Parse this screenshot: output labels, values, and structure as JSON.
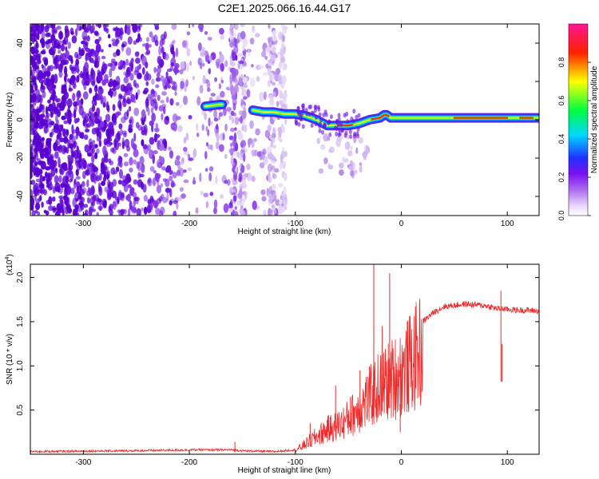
{
  "title": "C2E1.2025.066.16.44.G17",
  "chart_data": [
    {
      "type": "heatmap",
      "xlabel": "Height of straight line (km)",
      "ylabel": "Frequency (Hz)",
      "xlim": [
        -350,
        130
      ],
      "ylim": [
        -50,
        50
      ],
      "xticks": [
        -300,
        -200,
        -100,
        0,
        100
      ],
      "yticks": [
        -40,
        -20,
        0,
        20,
        40
      ],
      "colorbar": {
        "label": "Normalized spectral amplitude",
        "range": [
          0,
          1
        ],
        "ticks": [
          "0.0",
          "0.2",
          "0.4",
          "0.6",
          "0.8"
        ],
        "colormap": [
          "#ffffff",
          "#c8a0f0",
          "#7a1ee6",
          "#2030ff",
          "#00e0ff",
          "#00ff40",
          "#ffff00",
          "#ff0000",
          "#ff1493"
        ]
      },
      "ridge": {
        "x": [
          -185,
          -170,
          -160,
          -150,
          -140,
          -130,
          -120,
          -110,
          -100,
          -90,
          -80,
          -70,
          -60,
          -50,
          -40,
          -30,
          -20,
          -15,
          -10,
          0,
          20,
          40,
          60,
          80,
          100,
          120,
          130
        ],
        "y": [
          7,
          8,
          7,
          6,
          5,
          4,
          4,
          3,
          3,
          2,
          0,
          -3,
          -3,
          -3,
          -2,
          0,
          1,
          3,
          1,
          1,
          1,
          1,
          1,
          1,
          1,
          1,
          1
        ]
      }
    },
    {
      "type": "line",
      "xlabel": "Height of straight line (km)",
      "ylabel": "SNR (10 * v/v)",
      "multiplier": "(x10",
      "multiplier_exp": "4",
      "multiplier_close": ")",
      "xlim": [
        -350,
        130
      ],
      "ylim": [
        0,
        21500
      ],
      "xticks": [
        -300,
        -200,
        -100,
        0,
        100
      ],
      "yticks": [
        {
          "value": 5000,
          "label": "0.5"
        },
        {
          "value": 10000,
          "label": "1.0"
        },
        {
          "value": 15000,
          "label": "1.5"
        },
        {
          "value": 20000,
          "label": "2.0"
        }
      ],
      "color": "#ee2b2b",
      "envelope": {
        "x": [
          -350,
          -250,
          -200,
          -160,
          -150,
          -120,
          -100,
          -90,
          -80,
          -70,
          -60,
          -50,
          -40,
          -30,
          -20,
          -10,
          0,
          10,
          20,
          30,
          40,
          60,
          80,
          90,
          100,
          110,
          120,
          130
        ],
        "y": [
          300,
          400,
          500,
          500,
          400,
          300,
          500,
          1500,
          2500,
          3500,
          4000,
          5000,
          6500,
          8000,
          9500,
          10500,
          11500,
          13000,
          15000,
          16000,
          16700,
          17000,
          16800,
          16500,
          16400,
          16300,
          16300,
          16200
        ]
      },
      "spikes": [
        {
          "x": -157,
          "y": 1400
        },
        {
          "x": -86,
          "y": 3500
        },
        {
          "x": -62,
          "y": 7800
        },
        {
          "x": -48,
          "y": 6500
        },
        {
          "x": -39,
          "y": 9500
        },
        {
          "x": -26,
          "y": 21500
        },
        {
          "x": -18,
          "y": 14500
        },
        {
          "x": -11,
          "y": 20500
        },
        {
          "x": -1,
          "y": 2500
        },
        {
          "x": 94,
          "y": 18500
        },
        {
          "x": 95,
          "y": 12500
        }
      ]
    }
  ]
}
